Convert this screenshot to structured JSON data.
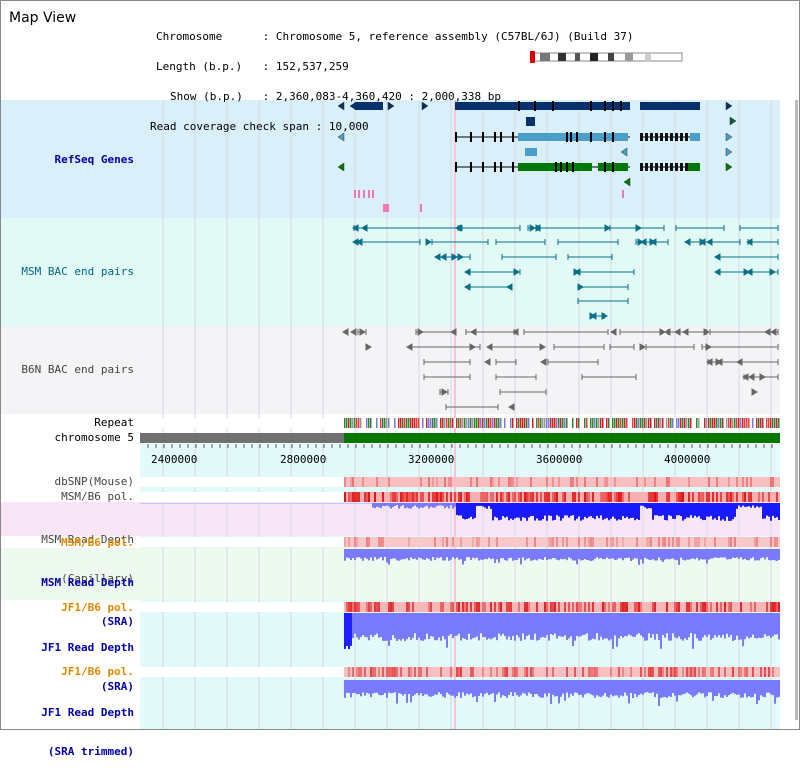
{
  "title": "Map View",
  "info": {
    "chromosome_label": "Chromosome",
    "chromosome_value": "Chromosome 5, reference assembly (C57BL/6J) (Build 37)",
    "length_label": "Length (b.p.)",
    "length_value": "152,537,259",
    "show_label": "Show (b.p.)",
    "show_value": "2,360,083-4,360,420 : 2,000,338 bp",
    "coverage_label": "Read coverage check span",
    "coverage_value": "10,000"
  },
  "tracks": {
    "refseq": "RefSeq Genes",
    "msm_bac": "MSM BAC end pairs",
    "b6n_bac": "B6N BAC end pairs",
    "repeat": "Repeat",
    "chromosome": "chromosome 5",
    "dbsnp": "dbSNP(Mouse)",
    "msm_pol_1": "MSM/B6 pol.",
    "msm_depth_cap_1": "MSM Read Depth",
    "msm_depth_cap_2": "(Capillary)",
    "msm_pol_2": "MSM/B6 pol.",
    "msm_depth_sra_1": "MSM Read Depth",
    "msm_depth_sra_2": "(SRA)",
    "jf1_pol_1": "JF1/B6 pol.",
    "jf1_depth_sra_1": "JF1 Read Depth",
    "jf1_depth_sra_2": "(SRA)",
    "jf1_pol_2": "JF1/B6 pol.",
    "jf1_depth_trim_1": "JF1 Read Depth",
    "jf1_depth_trim_2": "(SRA trimmed)"
  },
  "axis": {
    "ticks": [
      "2400000",
      "2800000",
      "3200000",
      "3600000",
      "4000000"
    ]
  },
  "colors": {
    "gene_navy": "#08306b",
    "gene_light": "#4a9ec8",
    "gene_green": "#007700",
    "bac_msm": "#0a6f8a",
    "bac_b6n": "#666666",
    "snp": "#f08a8a",
    "pol_red": "#e01010",
    "depth_blue": "#1a1aff",
    "depth_light": "#7a7aff",
    "chrom_green": "#007700",
    "chrom_gray": "#707070"
  }
}
